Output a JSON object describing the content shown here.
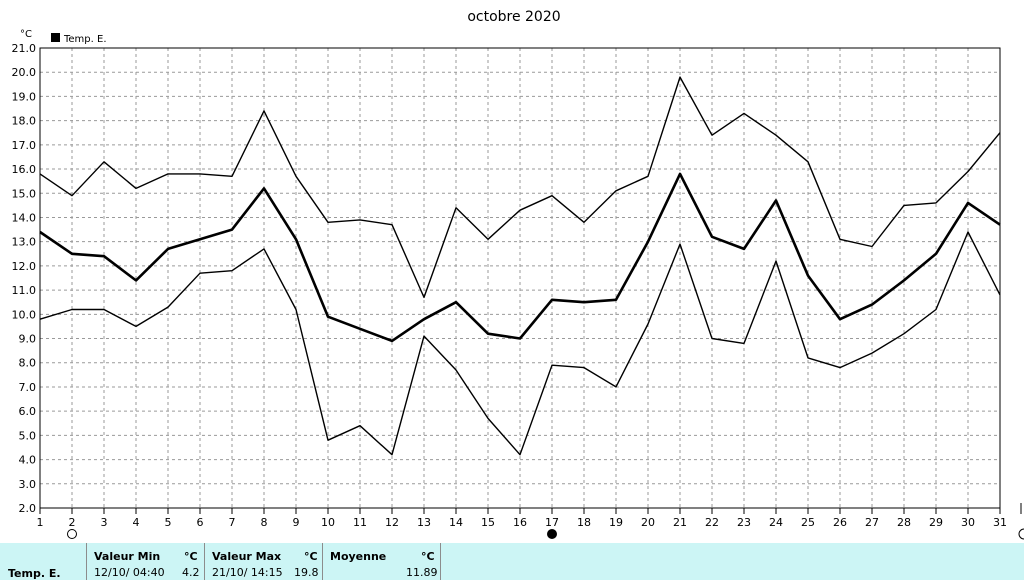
{
  "chart_data": {
    "type": "line",
    "title": "octobre 2020",
    "unit_label": "°C",
    "legend": {
      "label": "Temp. E.",
      "placement": "top-left",
      "color": "#000000"
    },
    "x": [
      1,
      2,
      3,
      4,
      5,
      6,
      7,
      8,
      9,
      10,
      11,
      12,
      13,
      14,
      15,
      16,
      17,
      18,
      19,
      20,
      21,
      22,
      23,
      24,
      25,
      26,
      27,
      28,
      29,
      30,
      31
    ],
    "xlim": [
      1,
      31
    ],
    "ylim": [
      2.0,
      21.0
    ],
    "y_ticks": [
      "2.0",
      "3.0",
      "4.0",
      "5.0",
      "6.0",
      "7.0",
      "8.0",
      "9.0",
      "10.0",
      "11.0",
      "12.0",
      "13.0",
      "14.0",
      "15.0",
      "16.0",
      "17.0",
      "18.0",
      "19.0",
      "20.0",
      "21.0"
    ],
    "grid": true,
    "series": [
      {
        "role": "max",
        "values": [
          15.8,
          14.9,
          16.3,
          15.2,
          15.8,
          15.8,
          15.7,
          18.4,
          15.7,
          13.8,
          13.9,
          13.7,
          10.7,
          14.4,
          13.1,
          14.3,
          14.9,
          13.8,
          15.1,
          15.7,
          19.8,
          17.4,
          18.3,
          17.4,
          16.3,
          13.1,
          12.8,
          14.5,
          14.6,
          15.9,
          17.5
        ]
      },
      {
        "role": "mean",
        "values": [
          13.4,
          12.5,
          12.4,
          11.4,
          12.7,
          13.1,
          13.5,
          15.2,
          13.1,
          9.9,
          9.4,
          8.9,
          9.8,
          10.5,
          9.2,
          9.0,
          10.6,
          10.5,
          10.6,
          13.0,
          15.8,
          13.2,
          12.7,
          14.7,
          11.6,
          9.8,
          10.4,
          11.4,
          12.5,
          14.6,
          13.7
        ]
      },
      {
        "role": "min",
        "values": [
          9.8,
          10.2,
          10.2,
          9.5,
          10.3,
          11.7,
          11.8,
          12.7,
          10.2,
          4.8,
          5.4,
          4.2,
          9.1,
          7.7,
          5.7,
          4.2,
          7.9,
          7.8,
          7.0,
          9.6,
          12.9,
          9.0,
          8.8,
          12.2,
          8.2,
          7.8,
          8.4,
          9.2,
          10.2,
          13.4,
          10.8
        ]
      }
    ],
    "moon_phases": [
      {
        "day": 2,
        "phase": "full-moon-icon"
      },
      {
        "day": 17,
        "phase": "new-moon-icon"
      }
    ]
  },
  "stats": {
    "row_label": "Temp. E.",
    "min_header": "Valeur Min",
    "max_header": "Valeur Max",
    "mean_header": "Moyenne",
    "unit": "°C",
    "min_date": "12/10/  04:40",
    "min_value": "4.2",
    "max_date": "21/10/  14:15",
    "max_value": "19.8",
    "mean_value": "11.89"
  }
}
